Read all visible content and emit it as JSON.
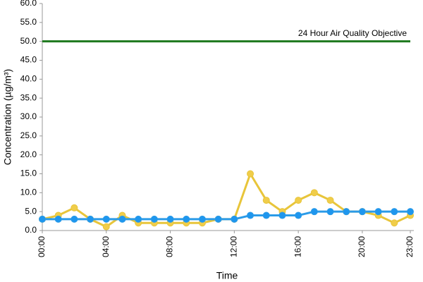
{
  "chart_data": {
    "type": "line",
    "x_label": "Time",
    "y_label": "Concentration (µg/m³)",
    "categories": [
      "00:00",
      null,
      null,
      null,
      "04:00",
      null,
      null,
      null,
      "08:00",
      null,
      null,
      null,
      "12:00",
      null,
      null,
      null,
      "16:00",
      null,
      null,
      null,
      "20:00",
      null,
      null,
      "23:00"
    ],
    "series": [
      {
        "color": "#e8c53a",
        "marker_color": "#f0cd4a",
        "values": [
          3,
          4,
          6,
          3,
          1,
          4,
          2,
          2,
          2,
          2,
          2,
          3,
          3,
          15,
          8,
          5,
          8,
          10,
          8,
          5,
          5,
          4,
          2,
          4
        ]
      },
      {
        "color": "#2b9be8",
        "marker_color": "#1e96ee",
        "values": [
          3,
          3,
          3,
          3,
          3,
          3,
          3,
          3,
          3,
          3,
          3,
          3,
          3,
          4,
          4,
          4,
          4,
          5,
          5,
          5,
          5,
          5,
          5,
          5
        ]
      }
    ],
    "reference_line": {
      "value": 50,
      "label": "24 Hour Air Quality Objective",
      "color": "#1e7a1e"
    },
    "ylim": [
      0,
      60
    ],
    "yticks": [
      {
        "value": 0,
        "label": "0.0"
      },
      {
        "value": 5,
        "label": "5.0"
      },
      {
        "value": 10,
        "label": "10.0"
      },
      {
        "value": 15,
        "label": "15.0"
      },
      {
        "value": 20,
        "label": "20.0"
      },
      {
        "value": 25,
        "label": "25.0"
      },
      {
        "value": 30,
        "label": "30.0"
      },
      {
        "value": 35,
        "label": "35.0"
      },
      {
        "value": 40,
        "label": "40.0"
      },
      {
        "value": 45,
        "label": "45.0"
      },
      {
        "value": 50,
        "label": "50.0"
      },
      {
        "value": 55,
        "label": "55.0"
      },
      {
        "value": 60,
        "label": "60.0"
      }
    ],
    "grid": false
  }
}
